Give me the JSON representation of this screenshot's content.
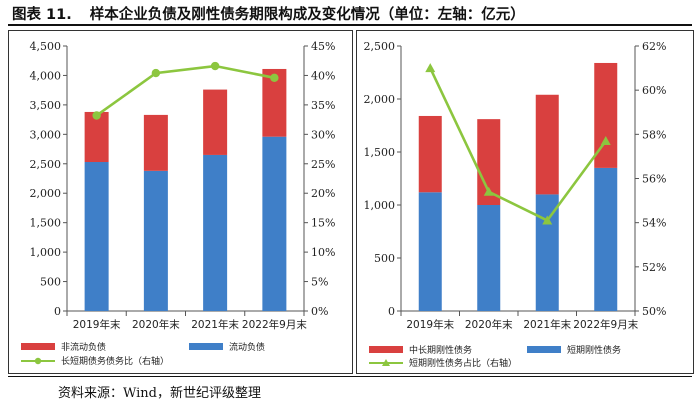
{
  "figure": {
    "number": "图表 11.",
    "title": "样本企业负债及刚性债务期限构成及变化情况（单位：左轴：亿元）",
    "source": "资料来源：Wind，新世纪评级整理"
  },
  "colors": {
    "red": "#d9403f",
    "blue": "#3f7fc8",
    "green": "#8cc63f",
    "axis": "#555555"
  },
  "chart_data": [
    {
      "type": "bar",
      "stacked": true,
      "categories": [
        "2019年末",
        "2020年末",
        "2021年末",
        "2022年9月末"
      ],
      "series": [
        {
          "name": "流动负债",
          "kind": "bar",
          "color": "blue",
          "values": [
            2530,
            2380,
            2650,
            2960
          ]
        },
        {
          "name": "非流动负债",
          "kind": "bar",
          "color": "red",
          "values": [
            850,
            950,
            1110,
            1150
          ]
        },
        {
          "name": "长短期债务债务比（右轴）",
          "kind": "line",
          "axis": "right",
          "color": "green",
          "values": [
            33.2,
            40.4,
            41.6,
            39.6
          ]
        }
      ],
      "y_left": {
        "min": 0,
        "max": 4500,
        "step": 500,
        "ticks": [
          "0",
          "500",
          "1,000",
          "1,500",
          "2,000",
          "2,500",
          "3,000",
          "3,500",
          "4,000",
          "4,500"
        ]
      },
      "y_right": {
        "min": 0,
        "max": 45,
        "step": 5,
        "ticks": [
          "0%",
          "5%",
          "10%",
          "15%",
          "20%",
          "25%",
          "30%",
          "35%",
          "40%",
          "45%"
        ]
      },
      "legend": [
        "非流动负债",
        "流动负债",
        "长短期债务债务比（右轴）"
      ],
      "marker": "circle"
    },
    {
      "type": "bar",
      "stacked": true,
      "categories": [
        "2019年末",
        "2020年末",
        "2021年末",
        "2022年9月末"
      ],
      "series": [
        {
          "name": "短期刚性债务",
          "kind": "bar",
          "color": "blue",
          "values": [
            1120,
            1000,
            1100,
            1350
          ]
        },
        {
          "name": "中长期刚性债务",
          "kind": "bar",
          "color": "red",
          "values": [
            720,
            810,
            940,
            990
          ]
        },
        {
          "name": "短期刚性债务占比（右轴）",
          "kind": "line",
          "axis": "right",
          "color": "green",
          "values": [
            61.0,
            55.4,
            54.1,
            57.7
          ]
        }
      ],
      "y_left": {
        "min": 0,
        "max": 2500,
        "step": 500,
        "ticks": [
          "0",
          "500",
          "1,000",
          "1,500",
          "2,000",
          "2,500"
        ]
      },
      "y_right": {
        "min": 50,
        "max": 62,
        "step": 2,
        "ticks": [
          "50%",
          "52%",
          "54%",
          "56%",
          "58%",
          "60%",
          "62%"
        ]
      },
      "legend": [
        "中长期刚性债务",
        "短期刚性债务",
        "短期刚性债务占比（右轴）"
      ],
      "marker": "triangle"
    }
  ]
}
